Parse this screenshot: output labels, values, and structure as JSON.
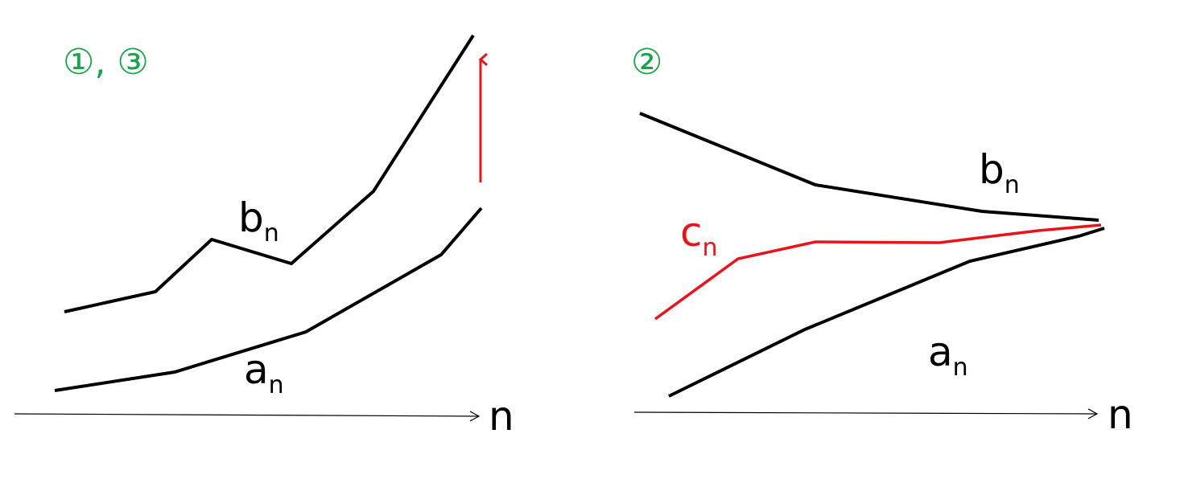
{
  "colors": {
    "curve": "#000000",
    "highlight": "#e8141c",
    "panel_label": "#1aa34a",
    "axis": "#000000"
  },
  "left_panel": {
    "title": "①, ③",
    "axis_label": "n",
    "b_label": {
      "main": "b",
      "sub": "n"
    },
    "a_label": {
      "main": "a",
      "sub": "n"
    },
    "arrow": "upward red arrow (diverges)"
  },
  "right_panel": {
    "title": "②",
    "axis_label": "n",
    "b_label": {
      "main": "b",
      "sub": "n"
    },
    "c_label": {
      "main": "c",
      "sub": "n"
    },
    "a_label": {
      "main": "a",
      "sub": "n"
    }
  }
}
